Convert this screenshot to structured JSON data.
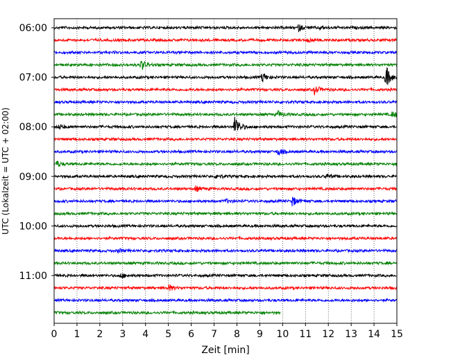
{
  "chart_data": {
    "type": "line",
    "subtype": "helicorder",
    "xlabel": "Zeit  [min]",
    "ylabel": "UTC (Lokalzeit = UTC + 02:00)",
    "xlim": [
      0,
      15
    ],
    "x_ticks": [
      "0",
      "1",
      "2",
      "3",
      "4",
      "5",
      "6",
      "7",
      "8",
      "9",
      "10",
      "11",
      "12",
      "13",
      "14",
      "15"
    ],
    "y_ticks": [
      "06:00",
      "07:00",
      "08:00",
      "09:00",
      "10:00",
      "11:00"
    ],
    "grid": "vertical dotted",
    "trace_colors": [
      "#000000",
      "#ff0000",
      "#0000ff",
      "#008000"
    ],
    "trace_interval_minutes": 15,
    "trace_start": "06:00",
    "trace_count": 24,
    "last_trace_end_minute": 9.9,
    "events": [
      {
        "trace": 0,
        "minute": 10.7,
        "amplitude": 0.5
      },
      {
        "trace": 0,
        "minute": 11.6,
        "amplitude": 0.3
      },
      {
        "trace": 1,
        "minute": 11.1,
        "amplitude": 0.35
      },
      {
        "trace": 3,
        "minute": 3.8,
        "amplitude": 0.9
      },
      {
        "trace": 4,
        "minute": 9.1,
        "amplitude": 0.8
      },
      {
        "trace": 4,
        "minute": 14.5,
        "amplitude": 2.0
      },
      {
        "trace": 5,
        "minute": 11.4,
        "amplitude": 0.7
      },
      {
        "trace": 7,
        "minute": 9.8,
        "amplitude": 0.5
      },
      {
        "trace": 7,
        "minute": 14.8,
        "amplitude": 0.5
      },
      {
        "trace": 8,
        "minute": 7.9,
        "amplitude": 2.0
      },
      {
        "trace": 8,
        "minute": 0.2,
        "amplitude": 0.4
      },
      {
        "trace": 10,
        "minute": 9.8,
        "amplitude": 0.6
      },
      {
        "trace": 11,
        "minute": 0.1,
        "amplitude": 0.5
      },
      {
        "trace": 12,
        "minute": 7.1,
        "amplitude": 0.4
      },
      {
        "trace": 12,
        "minute": 11.9,
        "amplitude": 0.4
      },
      {
        "trace": 13,
        "minute": 6.2,
        "amplitude": 0.4
      },
      {
        "trace": 14,
        "minute": 10.4,
        "amplitude": 0.9
      },
      {
        "trace": 14,
        "minute": 7.5,
        "amplitude": 0.3
      },
      {
        "trace": 18,
        "minute": 2.8,
        "amplitude": 0.3
      },
      {
        "trace": 20,
        "minute": 2.9,
        "amplitude": 0.4
      },
      {
        "trace": 21,
        "minute": 5.0,
        "amplitude": 0.5
      }
    ]
  }
}
